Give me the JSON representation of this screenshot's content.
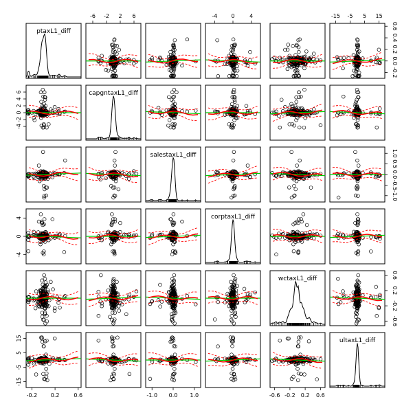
{
  "chart_data": {
    "type": "scatter-matrix",
    "variables": [
      "ptaxL1_diff",
      "capgntaxL1_diff",
      "salestaxL1_diff",
      "corptaxL1_diff",
      "wctaxL1_diff",
      "ultaxL1_diff"
    ],
    "ranges": [
      [
        -0.3,
        0.65
      ],
      [
        -8,
        8
      ],
      [
        -1.3,
        1.3
      ],
      [
        -6,
        6
      ],
      [
        -0.72,
        0.72
      ],
      [
        -19,
        19
      ]
    ],
    "ticks_top": [
      {
        "column": 1,
        "values": [
          -6,
          -2,
          2,
          6
        ],
        "labels": [
          "-6",
          "-2",
          "2",
          "6"
        ]
      },
      {
        "column": 3,
        "values": [
          -4,
          0,
          4
        ],
        "labels": [
          "-4",
          "0",
          "4"
        ]
      },
      {
        "column": 5,
        "values": [
          -15,
          -5,
          5,
          15
        ],
        "labels": [
          "-15",
          "-5",
          "5",
          "15"
        ]
      }
    ],
    "ticks_bottom": [
      {
        "column": 0,
        "values": [
          -0.2,
          0.2,
          0.6
        ],
        "labels": [
          "-0.2",
          "0.2",
          "0.6"
        ]
      },
      {
        "column": 2,
        "values": [
          -1.0,
          0.0,
          1.0
        ],
        "labels": [
          "-1.0",
          "0.0",
          "1.0"
        ]
      },
      {
        "column": 4,
        "values": [
          -0.6,
          -0.2,
          0.2,
          0.6
        ],
        "labels": [
          "-0.6",
          "-0.2",
          "0.2",
          "0.6"
        ]
      }
    ],
    "ticks_left": [
      {
        "row": 1,
        "values": [
          -4,
          -2,
          0,
          2,
          4,
          6
        ],
        "labels": [
          "-4",
          "-2",
          "0",
          "2",
          "4",
          "6"
        ]
      },
      {
        "row": 3,
        "values": [
          -4,
          0,
          4
        ],
        "labels": [
          "-4",
          "0",
          "4"
        ]
      },
      {
        "row": 5,
        "values": [
          -15,
          -5,
          5,
          15
        ],
        "labels": [
          "-15",
          "-5",
          "5",
          "15"
        ]
      }
    ],
    "ticks_right": [
      {
        "row": 0,
        "values": [
          -0.2,
          0.0,
          0.2,
          0.4,
          0.6
        ],
        "labels": [
          "-0.2",
          "0.0",
          "0.2",
          "0.4",
          "0.6"
        ]
      },
      {
        "row": 2,
        "values": [
          -1.0,
          -0.5,
          0.0,
          0.5,
          1.0
        ],
        "labels": [
          "-1.0",
          "-0.5",
          "0.0",
          "0.5",
          "1.0"
        ]
      },
      {
        "row": 4,
        "values": [
          -0.6,
          -0.2,
          0.2,
          0.6
        ],
        "labels": [
          "-0.6",
          "-0.2",
          "0.2",
          "0.6"
        ]
      }
    ],
    "diagonal": "density",
    "upper_panels": "scatter with linear fit and smoother",
    "lower_panels": "scatter with linear fit and smoother",
    "point_symbol": "open circle",
    "colors": {
      "points": "#000000",
      "linear_fit": "#00cc00",
      "smoother": "#ff0000",
      "density": "#000000",
      "rug": "#000000"
    },
    "grid": false,
    "legend": "none"
  }
}
